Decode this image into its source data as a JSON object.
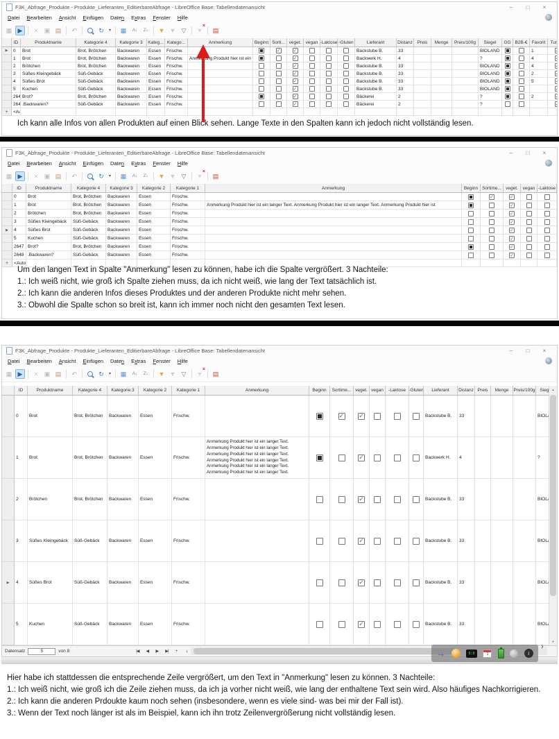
{
  "window_title": "F3K_Abfrage_Produkte - Produkte_Lieferanten_EditierbareAbfrage - LibreOffice Base: Tabellendatenansicht",
  "window_controls": {
    "minimize": "–",
    "maximize": "□",
    "close": "×"
  },
  "menu": {
    "items": [
      {
        "label": "Datei",
        "accel": 0
      },
      {
        "label": "Bearbeiten",
        "accel": 0
      },
      {
        "label": "Ansicht",
        "accel": 0
      },
      {
        "label": "Einfügen",
        "accel": 0
      },
      {
        "label": "Daten",
        "accel": 4
      },
      {
        "label": "Extras",
        "accel": 1
      },
      {
        "label": "Fenster",
        "accel": 0
      },
      {
        "label": "Hilfe",
        "accel": 0
      }
    ]
  },
  "toolbar": {
    "icons": [
      "save-icon",
      "edit-data-icon",
      "separator",
      "cut-icon",
      "copy-icon",
      "paste-icon",
      "separator",
      "undo-icon",
      "separator",
      "search-icon",
      "refresh-icon",
      "dropdown-icon",
      "separator",
      "data-source-icon",
      "sort-asc-icon",
      "sort-desc-icon",
      "separator",
      "autofilter-icon",
      "apply-filter-icon",
      "standard-filter-icon",
      "separator",
      "reset-filter-icon",
      "separator",
      "data-to-text-icon"
    ]
  },
  "record_bar": {
    "label": "Datensatz",
    "value": "5",
    "of_label": "von 8",
    "buttons": [
      "first",
      "prev",
      "next",
      "last",
      "new"
    ]
  },
  "tray": {
    "chevron": "›",
    "icons": [
      "purple-arrow-icon",
      "clock-icon",
      "digital-clock-icon",
      "calendar-icon",
      "battery-icon",
      "magnifier-icon",
      "info-icon"
    ]
  },
  "arrow_annotation": {
    "color": "#d91c1c"
  },
  "panels": [
    {
      "name": "overview-grid",
      "columns": [
        {
          "label": "ID",
          "type": "text"
        },
        {
          "label": "Produktname",
          "type": "text"
        },
        {
          "label": "Kategorie 4",
          "type": "text"
        },
        {
          "label": "Kategorie 3",
          "type": "text"
        },
        {
          "label": "Kateg...",
          "type": "text"
        },
        {
          "label": "Katego...",
          "type": "text"
        },
        {
          "label": "Anmerkung",
          "type": "text"
        },
        {
          "label": "Beginn",
          "type": "check"
        },
        {
          "label": "Sorti...",
          "type": "check"
        },
        {
          "label": "veget.",
          "type": "check"
        },
        {
          "label": "vegan",
          "type": "check"
        },
        {
          "label": "-Laktose",
          "type": "check"
        },
        {
          "label": "-Gluten",
          "type": "check"
        },
        {
          "label": "Lieferant",
          "type": "text"
        },
        {
          "label": "Distanz",
          "type": "text"
        },
        {
          "label": "Preis",
          "type": "text"
        },
        {
          "label": "Menge",
          "type": "text"
        },
        {
          "label": "Preis/100g",
          "type": "text"
        },
        {
          "label": "Siegel",
          "type": "text"
        },
        {
          "label": "GG",
          "type": "check"
        },
        {
          "label": "B2B-€",
          "type": "check"
        },
        {
          "label": "Favorit",
          "type": "text"
        },
        {
          "label": "Turnus",
          "type": "check"
        }
      ],
      "rows": [
        [
          "0",
          "Brot",
          "Brot, Brötchen",
          "Backwaren",
          "Essen",
          "Frischw.",
          "",
          "F",
          "C",
          "C",
          "E",
          "E",
          "E",
          "Backstube B.",
          "33",
          "",
          "",
          "",
          "BIOLAND",
          "F",
          "E",
          "1",
          "C"
        ],
        [
          "1",
          "Brot",
          "Brot, Brötchen",
          "Backwaren",
          "Essen",
          "Frischw.",
          "Anmerkung Produkt hier ist ein langer Text. Anmerkung Produkt hier ist ein langer Text. Anmerkung Produkt hier ist",
          "F",
          "E",
          "C",
          "E",
          "E",
          "E",
          "Backwerk H.",
          "4",
          "",
          "",
          "",
          "?",
          "F",
          "E",
          "4",
          "C"
        ],
        [
          "2",
          "Brötchen",
          "Brot, Brötchen",
          "Backwaren",
          "Essen",
          "Frischw.",
          "",
          "E",
          "E",
          "C",
          "E",
          "E",
          "E",
          "Backstube B.",
          "33",
          "",
          "",
          "",
          "BIOLAND",
          "F",
          "E",
          "4",
          "C"
        ],
        [
          "3",
          "Süßes Kleingebäck",
          "Süß-Gebäck",
          "Backwaren",
          "Essen",
          "Frischw.",
          "",
          "E",
          "E",
          "C",
          "E",
          "E",
          "E",
          "Backstube B.",
          "33",
          "",
          "",
          "",
          "BIOLAND",
          "F",
          "E",
          "2",
          "C"
        ],
        [
          "4",
          "Süßes Brot",
          "Süß-Gebäck",
          "Backwaren",
          "Essen",
          "Frischw.",
          "",
          "E",
          "E",
          "C",
          "E",
          "E",
          "E",
          "Backstube B.",
          "33",
          "",
          "",
          "",
          "BIOLAND",
          "F",
          "E",
          "5",
          "C"
        ],
        [
          "5",
          "Kuchen",
          "Süß-Gebäck",
          "Backwaren",
          "Essen",
          "Frischw.",
          "",
          "E",
          "E",
          "C",
          "E",
          "E",
          "E",
          "Backstube B.",
          "33",
          "",
          "",
          "",
          "BIOLAND",
          "F",
          "E",
          "",
          "C"
        ],
        [
          "2647",
          "Brot?",
          "Brot, Brötchen",
          "Backwaren",
          "Essen",
          "Frischw.",
          "",
          "F",
          "E",
          "C",
          "E",
          "E",
          "E",
          "Bäckerei",
          "2",
          "",
          "",
          "",
          "?",
          "F",
          "E",
          "2",
          "C"
        ],
        [
          "2648",
          ".Backwaren?",
          "Süß-Gebäck",
          "Backwaren",
          "Essen",
          "Frischw.",
          "",
          "E",
          "E",
          "C",
          "E",
          "E",
          "E",
          "Bäckerei",
          "2",
          "",
          "",
          "",
          "?",
          "E",
          "E",
          "",
          "C"
        ]
      ],
      "selected_row": 0,
      "append_label": "<AutoWert>",
      "caption": [
        "Ich kann alle Infos von allen Produkten auf einen Blick sehen. Lange Texte in den Spalten kann ich jedoch nicht vollständig lesen."
      ]
    },
    {
      "name": "wide-column-grid",
      "columns": [
        {
          "label": "ID",
          "type": "text"
        },
        {
          "label": "Produktname",
          "type": "text"
        },
        {
          "label": "Kategorie 4",
          "type": "text"
        },
        {
          "label": "Kategorie 3",
          "type": "text"
        },
        {
          "label": "Kategorie 2",
          "type": "text"
        },
        {
          "label": "Kategorie 1",
          "type": "text"
        },
        {
          "label": "Anmerkung",
          "type": "text"
        },
        {
          "label": "Beginn",
          "type": "check"
        },
        {
          "label": "Sortime...",
          "type": "check"
        },
        {
          "label": "veget.",
          "type": "check"
        },
        {
          "label": "vegan",
          "type": "check"
        },
        {
          "label": "-Laktose",
          "type": "check"
        }
      ],
      "rows": [
        [
          "0",
          "Brot",
          "Brot, Brötchen",
          "Backwaren",
          "Essen",
          "Frischw.",
          "",
          "F",
          "C",
          "C",
          "E",
          "E"
        ],
        [
          "1",
          "Brot",
          "Brot, Brötchen",
          "Backwaren",
          "Essen",
          "Frischw.",
          "Anmerkung Produkt hier ist ein langer Text. Anmerkung Produkt hier ist ein langer Text. Anmerkung Produkt hier ist",
          "F",
          "E",
          "C",
          "E",
          "E"
        ],
        [
          "2",
          "Brötchen",
          "Brot, Brötchen",
          "Backwaren",
          "Essen",
          "Frischw.",
          "",
          "E",
          "E",
          "C",
          "E",
          "E"
        ],
        [
          "3",
          "Süßes Kleingebäck",
          "Süß-Gebäck",
          "Backwaren",
          "Essen",
          "Frischw.",
          "",
          "E",
          "E",
          "C",
          "E",
          "E"
        ],
        [
          "4",
          "Süßes Brot",
          "Süß-Gebäck",
          "Backwaren",
          "Essen",
          "Frischw.",
          "",
          "E",
          "E",
          "C",
          "E",
          "E"
        ],
        [
          "5",
          "Kuchen",
          "Süß-Gebäck",
          "Backwaren",
          "Essen",
          "Frischw.",
          "",
          "E",
          "E",
          "C",
          "E",
          "E"
        ],
        [
          "2647",
          "Brot?",
          "Brot, Brötchen",
          "Backwaren",
          "Essen",
          "Frischw.",
          "",
          "F",
          "E",
          "C",
          "E",
          "E"
        ],
        [
          "2648",
          ".Backwaren?",
          "Süß-Gebäck",
          "Backwaren",
          "Essen",
          "Frischw.",
          "",
          "E",
          "E",
          "C",
          "E",
          "E"
        ]
      ],
      "selected_row": 4,
      "append_label": "<AutoWert>",
      "caption": [
        "Um den langen Text in Spalte \"Anmerkung\" lesen zu können, habe ich die Spalte vergrößert. 3 Nachteile:",
        "1.: Ich weiß nicht, wie groß ich Spalte ziehen muss, da ich nicht weiß, wie lang der Text tatsächlich ist.",
        "2.: Ich kann die anderen Infos dieses Produktes und der anderen Produkte nicht mehr sehen.",
        "3.: Obwohl die Spalte schon so breit ist, kann ich immer noch nicht den gesamten Text lesen."
      ]
    },
    {
      "name": "tall-row-grid",
      "columns": [
        {
          "label": "ID",
          "type": "text"
        },
        {
          "label": "Produktname",
          "type": "text"
        },
        {
          "label": "Kategorie 4",
          "type": "text"
        },
        {
          "label": "Kategorie 3",
          "type": "text"
        },
        {
          "label": "Kategorie 2",
          "type": "text"
        },
        {
          "label": "Kategorie 1",
          "type": "text"
        },
        {
          "label": "Anmerkung",
          "type": "text"
        },
        {
          "label": "Beginn",
          "type": "check"
        },
        {
          "label": "Sortime...",
          "type": "check"
        },
        {
          "label": "veget.",
          "type": "check"
        },
        {
          "label": "vegan",
          "type": "check"
        },
        {
          "label": "-Laktose",
          "type": "check"
        },
        {
          "label": "-Gluten",
          "type": "check"
        },
        {
          "label": "Lieferant",
          "type": "text"
        },
        {
          "label": "Distanz",
          "type": "text"
        },
        {
          "label": "Preis",
          "type": "text"
        },
        {
          "label": "Menge",
          "type": "text"
        },
        {
          "label": "Preis/100g",
          "type": "text"
        },
        {
          "label": "Siegel",
          "type": "text"
        }
      ],
      "rows": [
        [
          "0",
          "Brot",
          "Brot, Brötchen",
          "Backwaren",
          "Essen",
          "Frischw.",
          "",
          "F",
          "C",
          "C",
          "E",
          "E",
          "E",
          "Backstube B.",
          "33",
          "",
          "",
          "",
          "BIOLAND"
        ],
        [
          "1",
          "Brot",
          "Brot, Brötchen",
          "Backwaren",
          "Essen",
          "Frischw.",
          "Anmerkung Produkt hier ist ein langer Text.\nAnmerkung Produkt hier ist ein langer Text.\nAnmerkung Produkt hier ist ein langer Text.\nAnmerkung Produkt hier ist ein langer Text.\nAnmerkung Produkt hier ist ein langer Text.\nAnmerkung Produkt hier ist ein langer Text.",
          "F",
          "E",
          "C",
          "E",
          "E",
          "E",
          "Backwerk H.",
          "4",
          "",
          "",
          "",
          "?"
        ],
        [
          "2",
          "Brötchen",
          "Brot, Brötchen",
          "Backwaren",
          "Essen",
          "Frischw.",
          "",
          "E",
          "E",
          "C",
          "E",
          "E",
          "E",
          "Backstube B.",
          "33",
          "",
          "",
          "",
          "BIOLAND"
        ],
        [
          "3",
          "Süßes Kleingebäck",
          "Süß-Gebäck",
          "Backwaren",
          "Essen",
          "Frischw.",
          "",
          "E",
          "E",
          "C",
          "E",
          "E",
          "E",
          "Backstube B.",
          "33",
          "",
          "",
          "",
          "BIOLAND"
        ],
        [
          "4",
          "Süßes Brot",
          "Süß-Gebäck",
          "Backwaren",
          "Essen",
          "Frischw.",
          "",
          "E",
          "E",
          "C",
          "E",
          "E",
          "E",
          "Backstube B.",
          "33",
          "",
          "",
          "",
          "BIOLAND"
        ],
        [
          "5",
          "Kuchen",
          "Süß-Gebäck",
          "Backwaren",
          "Essen",
          "Frischw.",
          "",
          "E",
          "E",
          "C",
          "E",
          "E",
          "E",
          "Backstube B.",
          "33",
          "",
          "",
          "",
          "BIOLAND"
        ]
      ],
      "selected_row": 4,
      "append_label": null,
      "caption": [
        "Hier habe ich stattdessen die entsprechende Zeile vergrößert, um den Text in \"Anmerkung\" lesen zu können. 3 Nachteile:",
        "1.: Ich weiß nicht, wie groß ich die Zeile ziehen muss, da ich ja vorher nicht weiß, wie lang der enthaltene Text sein wird.  Also häufiges Nachkorrigieren.",
        "2.: Ich kann die anderen Prdoukte kaum noch sehen (insbesondere, wenn es viele sind- was bei mir der Fall ist).",
        "3.: Wenn der Text noch länger ist als im Beispiel, kann ich ihn trotz Zeilenvergrößerung nicht vollständig lesen."
      ]
    }
  ]
}
